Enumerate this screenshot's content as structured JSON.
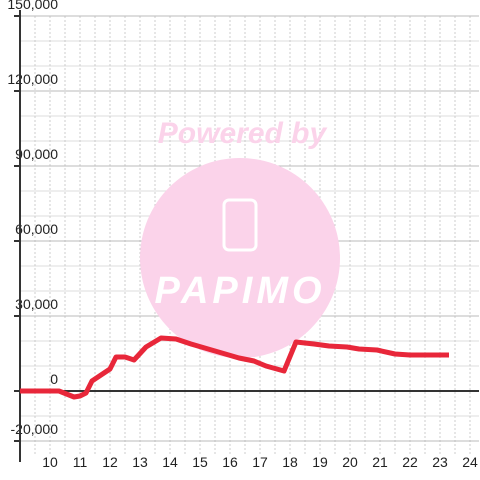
{
  "chart_data": {
    "type": "line",
    "annotations": [
      "Powered by",
      "PAPIMO"
    ],
    "x": [
      9,
      10,
      10.3,
      10.8,
      11,
      11.2,
      11.4,
      12,
      12.2,
      12.5,
      12.8,
      13.2,
      13.7,
      14.2,
      14.7,
      15.5,
      16.3,
      16.8,
      17.2,
      17.8,
      18.2,
      18.8,
      19.3,
      19.9,
      20.3,
      20.9,
      21.5,
      22,
      23.3
    ],
    "series": [
      {
        "color": "#e8273a",
        "values": [
          0,
          0,
          0,
          -2400,
          -2000,
          -800,
          4000,
          8800,
          13600,
          13600,
          12400,
          17600,
          21200,
          20800,
          18800,
          16000,
          13200,
          12000,
          10000,
          8000,
          19600,
          18800,
          18000,
          17600,
          16800,
          16400,
          14800,
          14400,
          14400
        ]
      }
    ],
    "xlim": [
      9,
      24.3
    ],
    "ylim": [
      -20000,
      150000
    ],
    "xticks": [
      10,
      11,
      12,
      13,
      14,
      15,
      16,
      17,
      18,
      19,
      20,
      21,
      22,
      23,
      24
    ],
    "yticks": [
      {
        "value": -20000,
        "label": "-20,000"
      },
      0,
      {
        "value": 30000,
        "label": "30,000"
      },
      {
        "value": 60000,
        "label": "60,000"
      },
      {
        "value": 90000,
        "label": "90,000"
      },
      {
        "value": 120000,
        "label": "120,000"
      },
      {
        "value": 150000,
        "label": "150,000"
      }
    ],
    "ygrid": [
      -10000,
      10000,
      20000,
      40000,
      50000,
      70000,
      80000,
      100000,
      110000,
      130000,
      140000
    ],
    "xgrid": [
      9.5,
      10.5,
      11.5,
      12.5,
      13.5,
      14.5,
      15.5,
      16.5,
      17.5,
      18.5,
      19.5,
      20.5,
      21.5,
      22.5,
      23.5
    ],
    "grid": true
  }
}
